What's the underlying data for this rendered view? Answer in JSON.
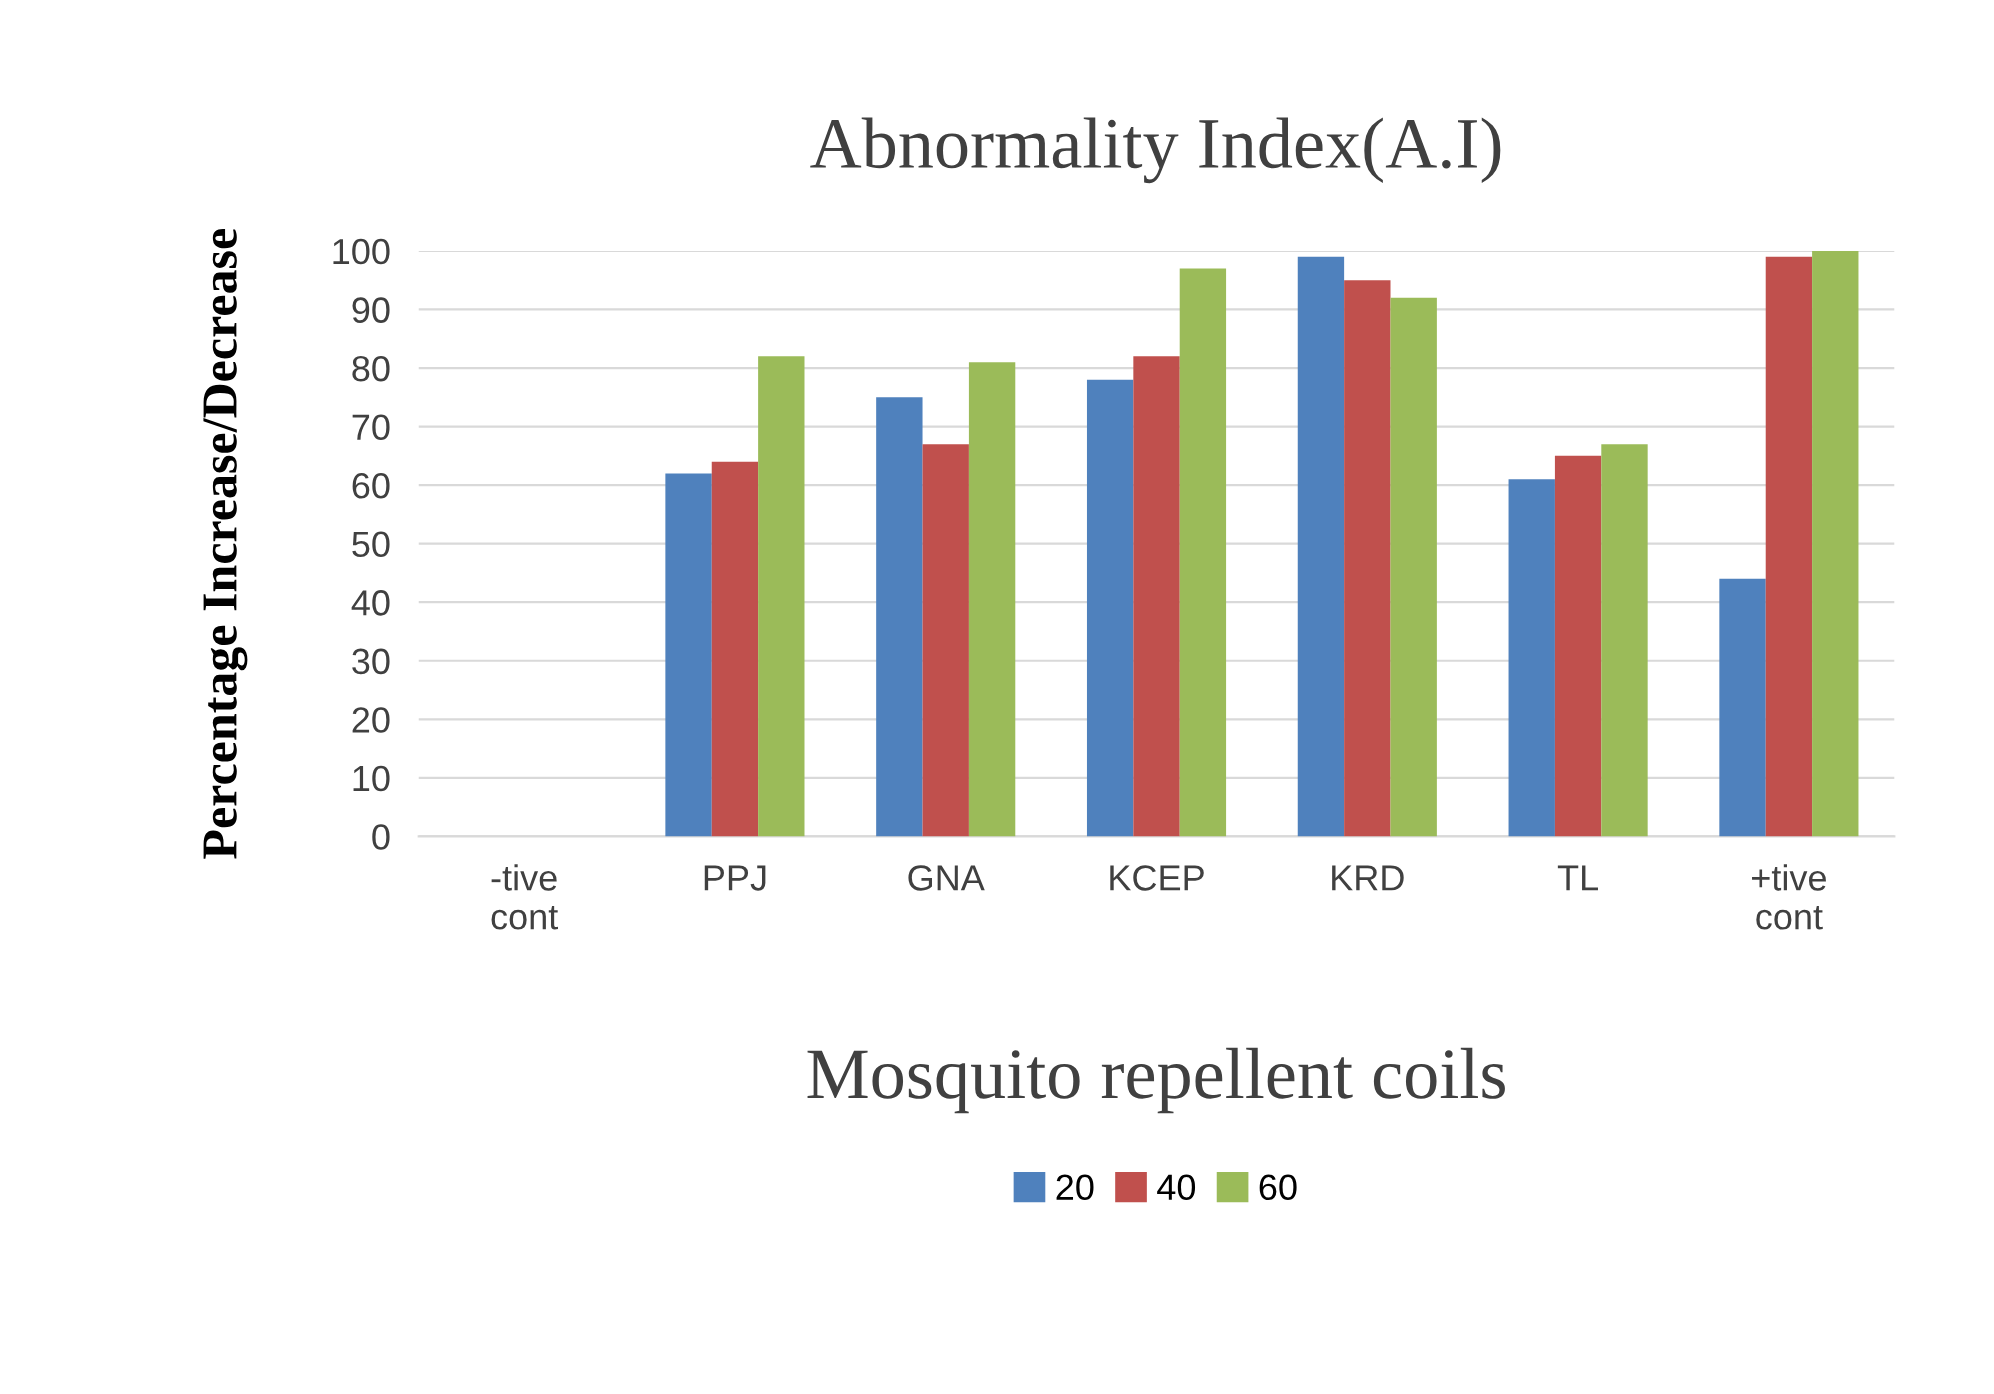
{
  "chart_data": {
    "type": "bar",
    "title": "Abnormality Index(A.I)",
    "xlabel": "Mosquito repellent coils",
    "ylabel": "Percentage Increase/Decrease",
    "categories": [
      "-tive\ncont",
      "PPJ",
      "GNA",
      "KCEP",
      "KRD",
      "TL",
      "+tive\ncont"
    ],
    "series": [
      {
        "name": "20",
        "color": "#4f81bd",
        "values": [
          0,
          62,
          75,
          78,
          99,
          61,
          44
        ]
      },
      {
        "name": "40",
        "color": "#c0504d",
        "values": [
          0,
          64,
          67,
          82,
          95,
          65,
          99
        ]
      },
      {
        "name": "60",
        "color": "#9bbb59",
        "values": [
          0,
          82,
          81,
          97,
          92,
          67,
          100
        ]
      }
    ],
    "ylim": [
      0,
      100
    ],
    "yticks": [
      0,
      10,
      20,
      30,
      40,
      50,
      60,
      70,
      80,
      90,
      100
    ],
    "grid": "y",
    "legend": "bottom"
  }
}
